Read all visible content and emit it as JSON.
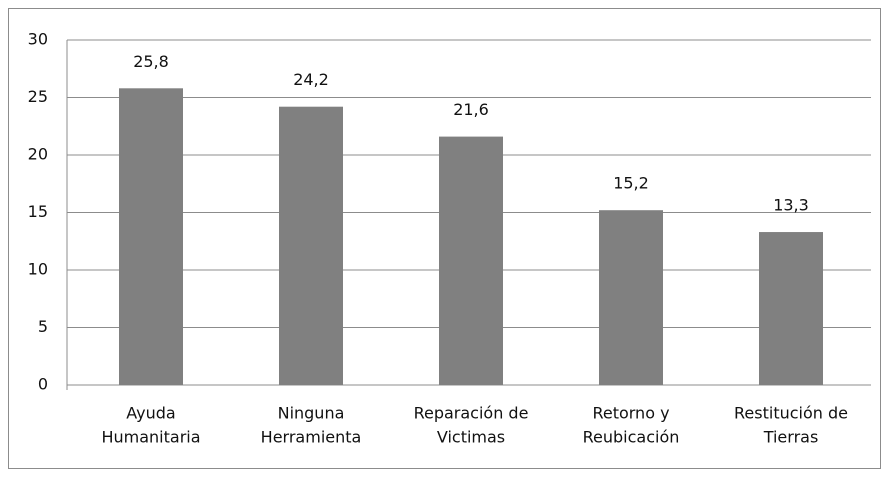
{
  "chart_data": {
    "type": "bar",
    "categories": [
      [
        "Ayuda",
        "Humanitaria"
      ],
      [
        "Ninguna",
        "Herramienta"
      ],
      [
        "Reparación de",
        "Victimas"
      ],
      [
        "Retorno y",
        "Reubicación"
      ],
      [
        "Restitución de",
        "Tierras"
      ]
    ],
    "values": [
      25.8,
      24.2,
      21.6,
      15.2,
      13.3
    ],
    "value_labels": [
      "25,8",
      "24,2",
      "21,6",
      "15,2",
      "13,3"
    ],
    "color": "#808080",
    "ylim": [
      0,
      30
    ],
    "yticks": [
      0,
      5,
      10,
      15,
      20,
      25,
      30
    ],
    "grid": true
  }
}
